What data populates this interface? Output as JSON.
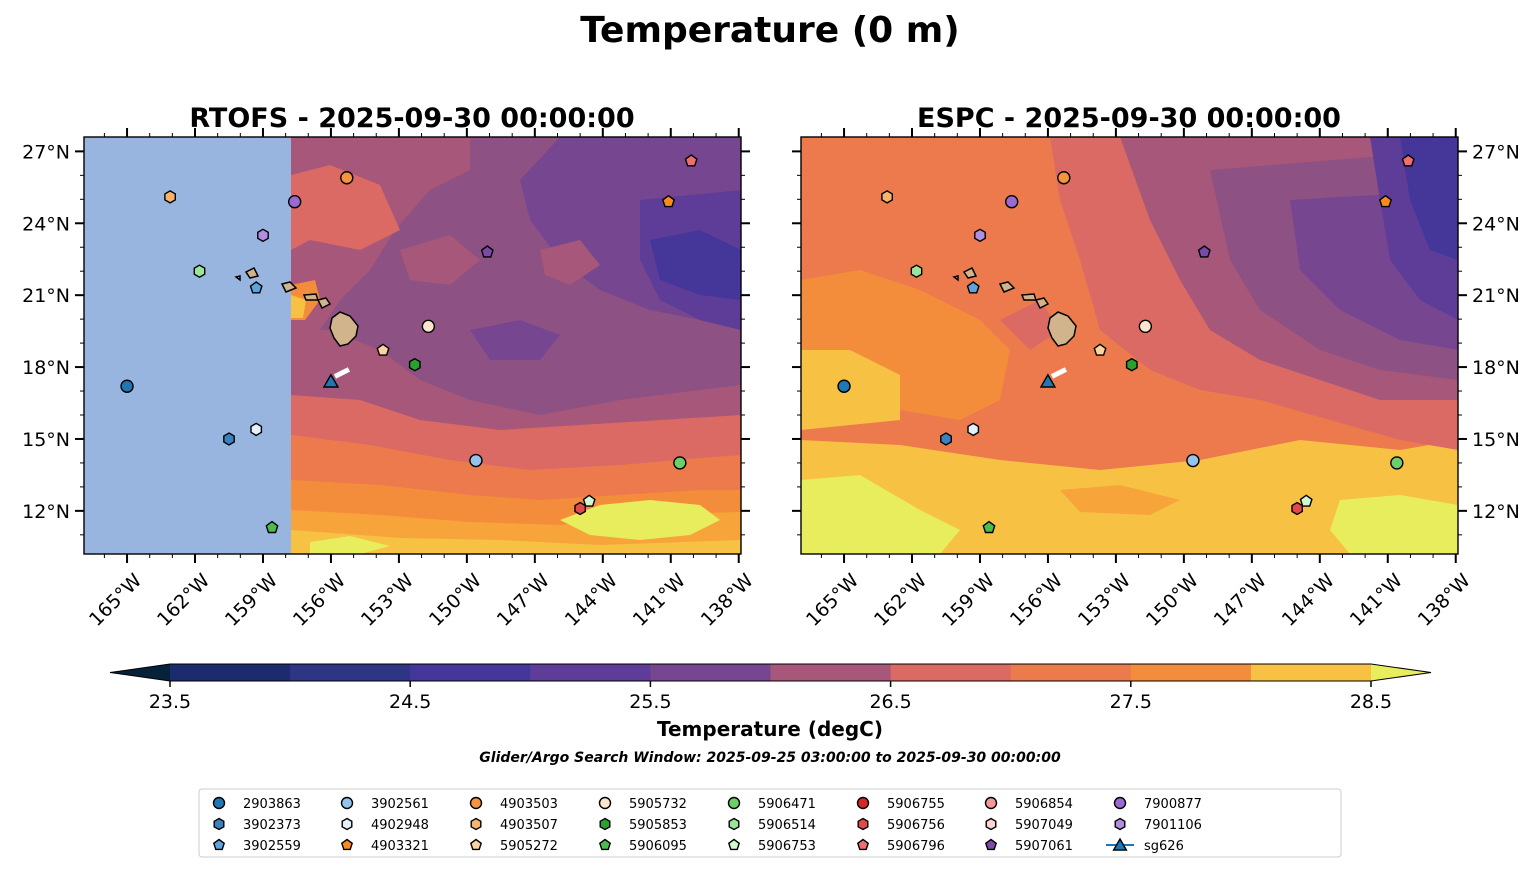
{
  "figure": {
    "title": "Temperature (0 m)",
    "search_window": "Glider/Argo Search Window: 2025-09-25 03:00:00 to 2025-09-30 00:00:00"
  },
  "colors": {
    "land": "#d2b48c",
    "nodata": "#98b5e0",
    "levels": [
      "#06223a",
      "#1f2e78",
      "#2e3585",
      "#45379a",
      "#5d3d97",
      "#764790",
      "#8e5184",
      "#a75779",
      "#c15e6c",
      "#da6a63",
      "#ed7a4d",
      "#f48d3b",
      "#f7a53a",
      "#f7c144",
      "#e8ed5e"
    ]
  },
  "chart_data": [
    {
      "type": "heatmap",
      "name": "RTOFS",
      "title": "RTOFS - 2025-09-30 00:00:00",
      "variable": "Temperature",
      "units": "degC",
      "xlim": [
        -166.9,
        -137.9
      ],
      "ylim": [
        10.2,
        27.6
      ],
      "xticks": [
        -165,
        -162,
        -159,
        -156,
        -153,
        -150,
        -147,
        -144,
        -141,
        -138
      ],
      "xtick_labels": [
        "165°W",
        "162°W",
        "159°W",
        "156°W",
        "153°W",
        "150°W",
        "147°W",
        "144°W",
        "141°W",
        "138°W"
      ],
      "yticks": [
        12,
        15,
        18,
        21,
        24,
        27
      ],
      "ytick_labels": [
        "12°N",
        "15°N",
        "18°N",
        "21°N",
        "24°N",
        "27°N"
      ],
      "ytick_side": "left",
      "data_extent_lon": [
        -157.8,
        -137.9
      ],
      "typical_value": 26.0
    },
    {
      "type": "heatmap",
      "name": "ESPC",
      "title": "ESPC - 2025-09-30 00:00:00",
      "variable": "Temperature",
      "units": "degC",
      "xlim": [
        -166.9,
        -137.9
      ],
      "ylim": [
        10.2,
        27.6
      ],
      "xticks": [
        -165,
        -162,
        -159,
        -156,
        -153,
        -150,
        -147,
        -144,
        -141,
        -138
      ],
      "xtick_labels": [
        "165°W",
        "162°W",
        "159°W",
        "156°W",
        "153°W",
        "150°W",
        "147°W",
        "144°W",
        "141°W",
        "138°W"
      ],
      "yticks": [
        12,
        15,
        18,
        21,
        24,
        27
      ],
      "ytick_labels": [
        "12°N",
        "15°N",
        "18°N",
        "21°N",
        "24°N",
        "27°N"
      ],
      "ytick_side": "right",
      "data_extent_lon": [
        -166.9,
        -137.9
      ],
      "typical_value": 26.8
    },
    {
      "type": "colorbar",
      "label": "Temperature (degC)",
      "vmin": 23.5,
      "vmax": 28.5,
      "levels": [
        23.5,
        24.0,
        24.5,
        25.0,
        25.5,
        26.0,
        26.5,
        27.0,
        27.5,
        28.0,
        28.5
      ],
      "ticks": [
        23.5,
        24.5,
        25.5,
        26.5,
        27.5,
        28.5
      ],
      "tick_labels": [
        "23.5",
        "24.5",
        "25.5",
        "26.5",
        "27.5",
        "28.5"
      ],
      "extend": "both"
    },
    {
      "type": "scatter",
      "name": "observations",
      "series": [
        {
          "name": "2903863",
          "marker": "circle",
          "color": "#1f77b4",
          "lon": -165.0,
          "lat": 17.2
        },
        {
          "name": "3902373",
          "marker": "hexagon",
          "color": "#3a81bf",
          "lon": -160.5,
          "lat": 15.0
        },
        {
          "name": "3902559",
          "marker": "pentagon",
          "color": "#5da4dc",
          "lon": -159.3,
          "lat": 21.3
        },
        {
          "name": "3902561",
          "marker": "circle",
          "color": "#94c4ea",
          "lon": -149.6,
          "lat": 14.1
        },
        {
          "name": "4902948",
          "marker": "hexagon",
          "color": "#e4f1fb",
          "lon": -159.3,
          "lat": 15.4
        },
        {
          "name": "4903321",
          "marker": "pentagon",
          "color": "#fb8b1f",
          "lon": -141.1,
          "lat": 24.9
        },
        {
          "name": "4903503",
          "marker": "circle",
          "color": "#f6943d",
          "lon": -155.3,
          "lat": 25.9
        },
        {
          "name": "4903507",
          "marker": "hexagon",
          "color": "#f7b46a",
          "lon": -163.1,
          "lat": 25.1
        },
        {
          "name": "5905272",
          "marker": "pentagon",
          "color": "#fbd3a1",
          "lon": -153.7,
          "lat": 18.7
        },
        {
          "name": "5905732",
          "marker": "circle",
          "color": "#fde4cc",
          "lon": -151.7,
          "lat": 19.7
        },
        {
          "name": "5905853",
          "marker": "hexagon",
          "color": "#2ca02c",
          "lon": -152.3,
          "lat": 18.1
        },
        {
          "name": "5906095",
          "marker": "pentagon",
          "color": "#4cbc4c",
          "lon": -158.6,
          "lat": 11.3
        },
        {
          "name": "5906471",
          "marker": "circle",
          "color": "#6ccf6c",
          "lon": -140.6,
          "lat": 14.0
        },
        {
          "name": "5906514",
          "marker": "hexagon",
          "color": "#9be59b",
          "lon": -161.8,
          "lat": 22.0
        },
        {
          "name": "5906753",
          "marker": "pentagon",
          "color": "#d2f7d2",
          "lon": -144.6,
          "lat": 12.4
        },
        {
          "name": "5906755",
          "marker": "circle",
          "color": "#d62728",
          "lon": null,
          "lat": null
        },
        {
          "name": "5906756",
          "marker": "hexagon",
          "color": "#e24a4a",
          "lon": -145.0,
          "lat": 12.1
        },
        {
          "name": "5906796",
          "marker": "pentagon",
          "color": "#ee6f6f",
          "lon": -140.1,
          "lat": 26.6
        },
        {
          "name": "5906854",
          "marker": "circle",
          "color": "#f29a9a",
          "lon": null,
          "lat": null
        },
        {
          "name": "5907049",
          "marker": "hexagon",
          "color": "#fcd3d3",
          "lon": null,
          "lat": null
        },
        {
          "name": "5907061",
          "marker": "pentagon",
          "color": "#7b4aa8",
          "lon": -149.1,
          "lat": 22.8
        },
        {
          "name": "7900877",
          "marker": "circle",
          "color": "#9b6ad0",
          "lon": -157.6,
          "lat": 24.9
        },
        {
          "name": "7901106",
          "marker": "hexagon",
          "color": "#b08ee0",
          "lon": -159.0,
          "lat": 23.5
        },
        {
          "name": "sg626",
          "marker": "triangle",
          "color": "#1f77b4",
          "lon": -156.0,
          "lat": 17.4
        }
      ]
    }
  ]
}
